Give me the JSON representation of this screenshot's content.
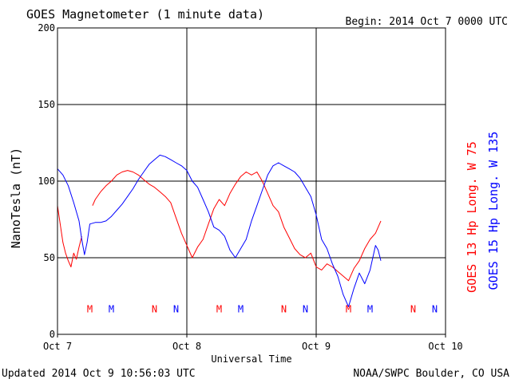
{
  "chart_data": {
    "type": "line",
    "title": "GOES Magnetometer (1 minute data)",
    "begin_label": "Begin:  2014 Oct 7 0000 UTC",
    "xlabel": "Universal Time",
    "ylabel": "NanoTesla (nT)",
    "x_unit": "hours since Oct 7 0000 UTC",
    "xlim": [
      0,
      72
    ],
    "ylim": [
      0,
      200
    ],
    "x_ticks": [
      {
        "x": 0,
        "label": "Oct 7"
      },
      {
        "x": 24,
        "label": "Oct 8"
      },
      {
        "x": 48,
        "label": "Oct 9"
      },
      {
        "x": 72,
        "label": "Oct 10"
      }
    ],
    "y_ticks": [
      0,
      50,
      100,
      150,
      200
    ],
    "grid": true,
    "series": [
      {
        "name": "GOES 13 Hp  Long. W 75",
        "color": "#ff0000",
        "points": [
          [
            0.0,
            84
          ],
          [
            0.5,
            72
          ],
          [
            1.0,
            60
          ],
          [
            1.5,
            53
          ],
          [
            2.0,
            48
          ],
          [
            2.5,
            44
          ],
          [
            3.0,
            53
          ],
          [
            3.5,
            49
          ],
          [
            4.0,
            57
          ],
          [
            4.5,
            64
          ],
          [
            6.5,
            84
          ],
          [
            7.0,
            88
          ],
          [
            8.0,
            93
          ],
          [
            9.0,
            97
          ],
          [
            10.0,
            100
          ],
          [
            11.0,
            104
          ],
          [
            12.0,
            106
          ],
          [
            13.0,
            107
          ],
          [
            14.0,
            106
          ],
          [
            15.0,
            104
          ],
          [
            16.0,
            101
          ],
          [
            17.0,
            98
          ],
          [
            18.0,
            96
          ],
          [
            19.0,
            93
          ],
          [
            20.0,
            90
          ],
          [
            21.0,
            86
          ],
          [
            22.0,
            76
          ],
          [
            23.0,
            66
          ],
          [
            24.0,
            58
          ],
          [
            25.0,
            50
          ],
          [
            26.0,
            57
          ],
          [
            27.0,
            62
          ],
          [
            28.0,
            72
          ],
          [
            29.0,
            82
          ],
          [
            30.0,
            88
          ],
          [
            31.0,
            84
          ],
          [
            32.0,
            92
          ],
          [
            33.0,
            98
          ],
          [
            34.0,
            103
          ],
          [
            35.0,
            106
          ],
          [
            36.0,
            104
          ],
          [
            37.0,
            106
          ],
          [
            38.0,
            100
          ],
          [
            39.0,
            92
          ],
          [
            40.0,
            84
          ],
          [
            41.0,
            80
          ],
          [
            42.0,
            70
          ],
          [
            43.0,
            63
          ],
          [
            44.0,
            56
          ],
          [
            45.0,
            52
          ],
          [
            46.0,
            50
          ],
          [
            47.0,
            53
          ],
          [
            48.0,
            44
          ],
          [
            49.0,
            42
          ],
          [
            50.0,
            46
          ],
          [
            51.0,
            44
          ],
          [
            52.0,
            41
          ],
          [
            53.0,
            38
          ],
          [
            54.0,
            35
          ],
          [
            55.0,
            43
          ],
          [
            56.0,
            48
          ],
          [
            57.0,
            56
          ],
          [
            58.0,
            62
          ],
          [
            59.0,
            66
          ],
          [
            60.0,
            74
          ]
        ]
      },
      {
        "name": "GOES 15 Hp  Long. W 135",
        "color": "#0000ff",
        "points": [
          [
            0.0,
            108
          ],
          [
            1.0,
            104
          ],
          [
            2.0,
            97
          ],
          [
            3.0,
            86
          ],
          [
            4.0,
            74
          ],
          [
            4.5,
            62
          ],
          [
            5.0,
            52
          ],
          [
            5.5,
            60
          ],
          [
            6.0,
            72
          ],
          [
            7.0,
            73
          ],
          [
            8.0,
            73
          ],
          [
            9.0,
            74
          ],
          [
            10.0,
            77
          ],
          [
            11.0,
            81
          ],
          [
            12.0,
            85
          ],
          [
            13.0,
            90
          ],
          [
            14.0,
            95
          ],
          [
            15.0,
            101
          ],
          [
            16.0,
            106
          ],
          [
            17.0,
            111
          ],
          [
            18.0,
            114
          ],
          [
            19.0,
            117
          ],
          [
            20.0,
            116
          ],
          [
            21.0,
            114
          ],
          [
            22.0,
            112
          ],
          [
            23.0,
            110
          ],
          [
            24.0,
            107
          ],
          [
            25.0,
            100
          ],
          [
            26.0,
            96
          ],
          [
            27.0,
            88
          ],
          [
            28.0,
            80
          ],
          [
            29.0,
            70
          ],
          [
            30.0,
            68
          ],
          [
            31.0,
            64
          ],
          [
            32.0,
            55
          ],
          [
            33.0,
            50
          ],
          [
            34.0,
            56
          ],
          [
            35.0,
            62
          ],
          [
            36.0,
            74
          ],
          [
            37.0,
            84
          ],
          [
            38.0,
            94
          ],
          [
            39.0,
            104
          ],
          [
            40.0,
            110
          ],
          [
            41.0,
            112
          ],
          [
            42.0,
            110
          ],
          [
            43.0,
            108
          ],
          [
            44.0,
            106
          ],
          [
            45.0,
            102
          ],
          [
            46.0,
            96
          ],
          [
            47.0,
            90
          ],
          [
            48.0,
            78
          ],
          [
            49.0,
            62
          ],
          [
            50.0,
            56
          ],
          [
            51.0,
            46
          ],
          [
            52.0,
            38
          ],
          [
            53.0,
            26
          ],
          [
            54.0,
            18
          ],
          [
            55.0,
            30
          ],
          [
            56.0,
            40
          ],
          [
            57.0,
            33
          ],
          [
            58.0,
            42
          ],
          [
            59.0,
            58
          ],
          [
            59.5,
            55
          ],
          [
            60.0,
            48
          ]
        ]
      }
    ],
    "markers": [
      {
        "x": 6.0,
        "label": "M",
        "color": "#ff0000"
      },
      {
        "x": 10.0,
        "label": "M",
        "color": "#0000ff"
      },
      {
        "x": 18.0,
        "label": "N",
        "color": "#ff0000"
      },
      {
        "x": 22.0,
        "label": "N",
        "color": "#0000ff"
      },
      {
        "x": 30.0,
        "label": "M",
        "color": "#ff0000"
      },
      {
        "x": 34.0,
        "label": "M",
        "color": "#0000ff"
      },
      {
        "x": 42.0,
        "label": "N",
        "color": "#ff0000"
      },
      {
        "x": 46.0,
        "label": "N",
        "color": "#0000ff"
      },
      {
        "x": 54.0,
        "label": "M",
        "color": "#ff0000"
      },
      {
        "x": 58.0,
        "label": "M",
        "color": "#0000ff"
      },
      {
        "x": 66.0,
        "label": "N",
        "color": "#ff0000"
      },
      {
        "x": 70.0,
        "label": "N",
        "color": "#0000ff"
      }
    ],
    "marker_level": 17
  },
  "footer": {
    "updated": "Updated 2014 Oct  9 10:56:03 UTC",
    "credit": "NOAA/SWPC Boulder, CO USA"
  }
}
